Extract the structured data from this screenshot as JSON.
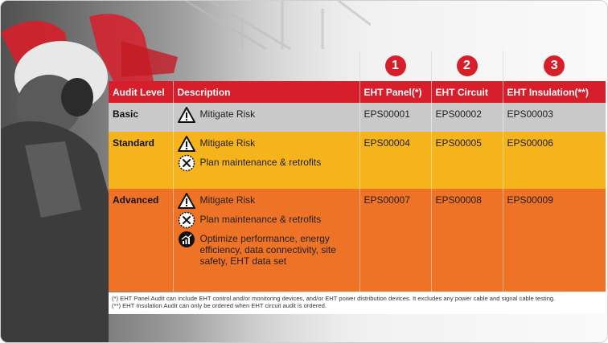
{
  "badges": [
    "1",
    "2",
    "3"
  ],
  "headers": {
    "audit_level": "Audit Level",
    "description": "Description",
    "col1": "EHT Panel(*)",
    "col2": "EHT Circuit",
    "col3": "EHT Insulation(**)"
  },
  "rows": [
    {
      "level": "Basic",
      "items": [
        "Mitigate Risk"
      ],
      "codes": [
        "EPS00001",
        "EPS00002",
        "EPS00003"
      ]
    },
    {
      "level": "Standard",
      "items": [
        "Mitigate Risk",
        "Plan maintenance & retrofits"
      ],
      "codes": [
        "EPS00004",
        "EPS00005",
        "EPS00006"
      ]
    },
    {
      "level": "Advanced",
      "items": [
        "Mitigate Risk",
        "Plan maintenance & retrofits",
        "Optimize performance, energy efficiency, data connectivity, site safety, EHT data set"
      ],
      "codes": [
        "EPS00007",
        "EPS00008",
        "EPS00009"
      ]
    }
  ],
  "footnotes": [
    "(*) EHT Panel Audit can include EHT control and/or monitoring devices, and/or EHT power distribution devices. It excludes any power cable and signal cable testing.",
    "(**) EHT Insulation Audit can only be ordered when EHT circuit audit is ordered."
  ],
  "colors": {
    "brand_red": "#d71f2b",
    "basic_gray": "#c9c9c9",
    "standard_yellow": "#f5b31c",
    "advanced_orange": "#ee7326"
  },
  "icon_names": [
    "warning-icon",
    "maintenance-icon",
    "performance-chart-icon"
  ]
}
